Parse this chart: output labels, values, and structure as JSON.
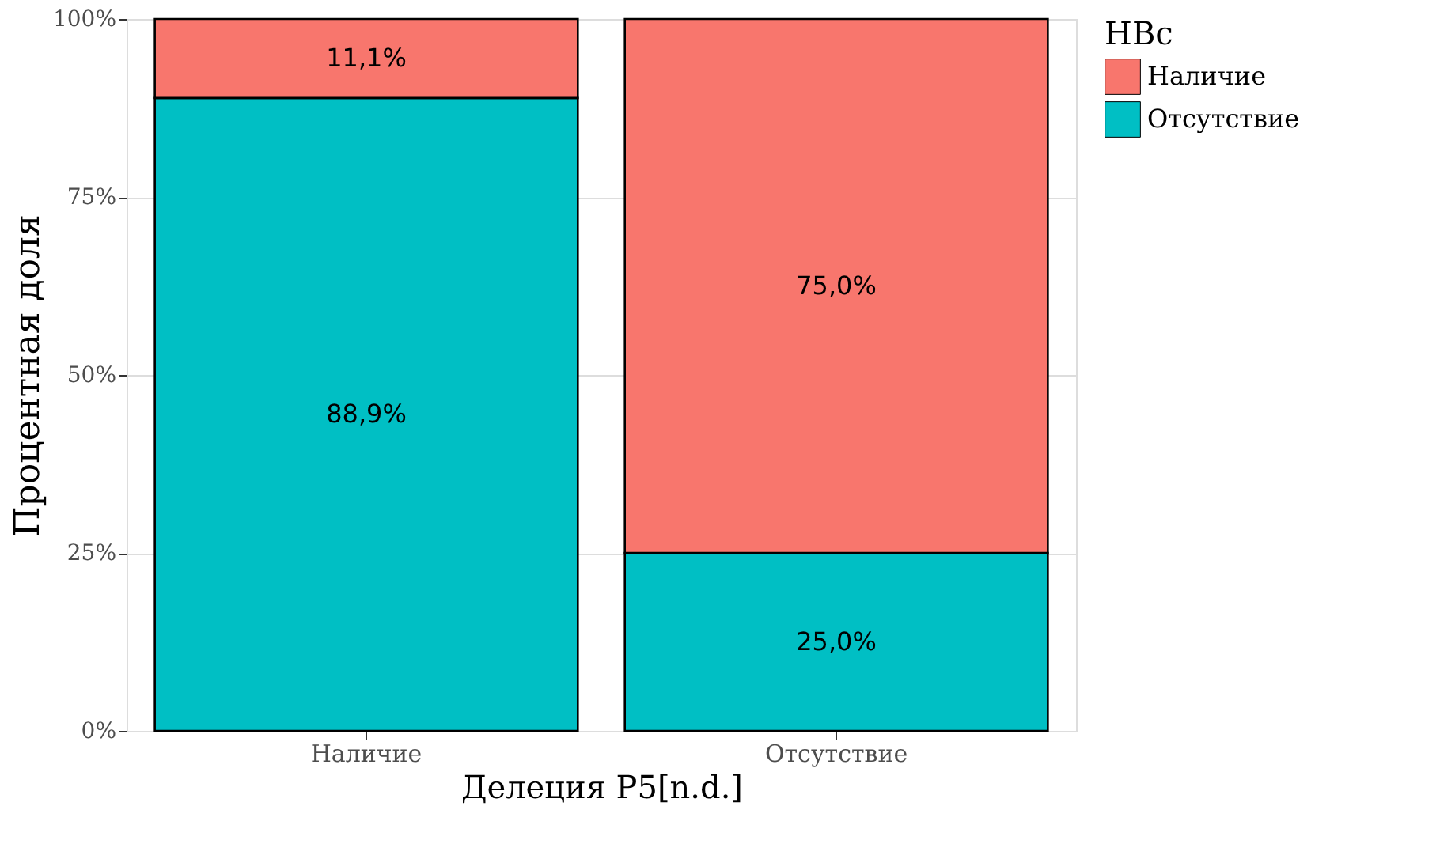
{
  "chart_data": {
    "type": "bar",
    "stacked": true,
    "xlabel": "Делеция P5[n.d.]",
    "ylabel": "Процентная доля",
    "legend_title": "HBc",
    "categories": [
      "Наличие",
      "Отсутствие"
    ],
    "series": [
      {
        "name": "Отсутствие",
        "color": "#00bfc4",
        "values": [
          88.9,
          25.0
        ],
        "value_labels": [
          "88,9%",
          "25,0%"
        ]
      },
      {
        "name": "Наличие",
        "color": "#f8766d",
        "values": [
          11.1,
          75.0
        ],
        "value_labels": [
          "11,1%",
          "75,0%"
        ]
      }
    ],
    "ylim": [
      0,
      100
    ],
    "yticks": [
      {
        "value": 0,
        "label": "0%"
      },
      {
        "value": 25,
        "label": "25%"
      },
      {
        "value": 50,
        "label": "50%"
      },
      {
        "value": 75,
        "label": "75%"
      },
      {
        "value": 100,
        "label": "100%"
      }
    ],
    "grid": true,
    "legend": "right"
  }
}
